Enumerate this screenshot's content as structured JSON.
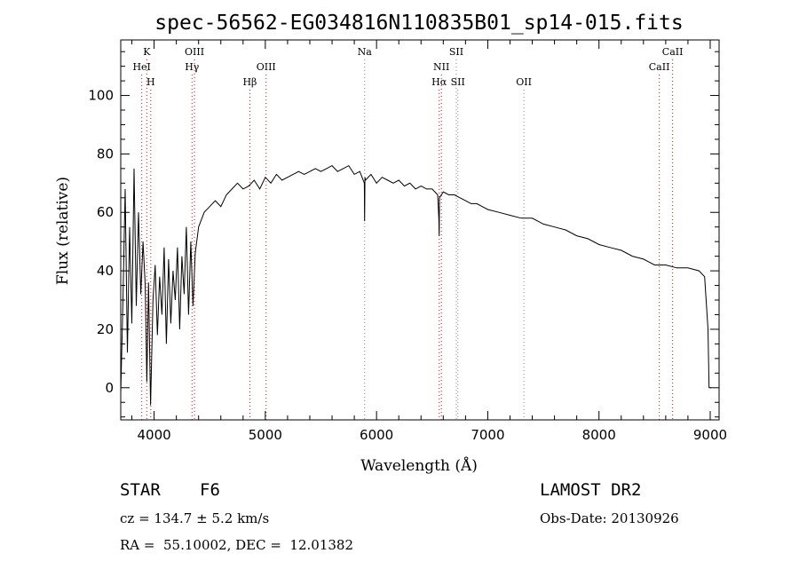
{
  "chart_data": {
    "type": "line",
    "title": "spec-56562-EG034816N110835B01_sp14-015.fits",
    "xlabel": "Wavelength (Å)",
    "ylabel": "Flux (relative)",
    "xlim": [
      3700,
      9080
    ],
    "ylim": [
      -11,
      119
    ],
    "xticks": [
      4000,
      5000,
      6000,
      7000,
      8000,
      9000
    ],
    "yticks": [
      0,
      20,
      40,
      60,
      80,
      100
    ],
    "grid": false,
    "line_color": "#000000",
    "marker_color": "#ff0000",
    "series": [
      {
        "x": [
          3700,
          3720,
          3740,
          3760,
          3780,
          3800,
          3820,
          3840,
          3860,
          3880,
          3900,
          3920,
          3935,
          3950,
          3968,
          3990,
          4010,
          4030,
          4050,
          4070,
          4090,
          4110,
          4130,
          4150,
          4170,
          4190,
          4210,
          4230,
          4250,
          4270,
          4290,
          4310,
          4330,
          4350,
          4370,
          4400,
          4450,
          4500,
          4550,
          4600,
          4650,
          4700,
          4750,
          4800,
          4850,
          4900,
          4950,
          5000,
          5050,
          5100,
          5150,
          5200,
          5250,
          5300,
          5350,
          5400,
          5450,
          5500,
          5550,
          5600,
          5650,
          5700,
          5750,
          5800,
          5850,
          5890,
          5893,
          5896,
          5900,
          5950,
          6000,
          6050,
          6100,
          6150,
          6200,
          6250,
          6300,
          6350,
          6400,
          6450,
          6500,
          6550,
          6560,
          6563,
          6566,
          6600,
          6650,
          6700,
          6750,
          6800,
          6850,
          6900,
          6950,
          7000,
          7100,
          7200,
          7300,
          7400,
          7500,
          7600,
          7700,
          7800,
          7900,
          8000,
          8100,
          8200,
          8300,
          8400,
          8450,
          8500,
          8600,
          8700,
          8800,
          8900,
          8950,
          8980,
          8990,
          9000,
          9010
        ],
        "y": [
          -2,
          30,
          68,
          12,
          55,
          22,
          75,
          28,
          60,
          32,
          50,
          35,
          2,
          36,
          -6,
          30,
          42,
          18,
          38,
          25,
          48,
          15,
          44,
          22,
          40,
          30,
          48,
          20,
          45,
          32,
          55,
          25,
          50,
          28,
          46,
          55,
          60,
          62,
          64,
          62,
          66,
          68,
          70,
          68,
          69,
          71,
          68,
          72,
          70,
          73,
          71,
          72,
          73,
          74,
          73,
          74,
          75,
          74,
          75,
          76,
          74,
          75,
          76,
          73,
          74,
          70,
          57,
          72,
          71,
          73,
          70,
          72,
          71,
          70,
          71,
          69,
          70,
          68,
          69,
          68,
          68,
          66,
          58,
          52,
          65,
          67,
          66,
          66,
          65,
          64,
          63,
          63,
          62,
          61,
          60,
          59,
          58,
          58,
          56,
          55,
          54,
          52,
          51,
          49,
          48,
          47,
          45,
          44,
          43,
          42,
          42,
          41,
          41,
          40,
          38,
          20,
          0,
          0,
          0
        ]
      }
    ],
    "lines": [
      {
        "label": "K",
        "x": 3934,
        "row": 0
      },
      {
        "label": "HeI",
        "x": 3889,
        "row": 1
      },
      {
        "label": "H",
        "x": 3970,
        "row": 2
      },
      {
        "label": "OIII",
        "x": 4363,
        "row": 0
      },
      {
        "label": "Hγ",
        "x": 4341,
        "row": 1
      },
      {
        "label": "OIII",
        "x": 5007,
        "row": 1
      },
      {
        "label": "Hβ",
        "x": 4861,
        "row": 2
      },
      {
        "label": "Na",
        "x": 5893,
        "row": 0
      },
      {
        "label": "SII",
        "x": 6717,
        "row": 0
      },
      {
        "label": "NII",
        "x": 6583,
        "row": 1
      },
      {
        "label": "Hα",
        "x": 6563,
        "row": 2
      },
      {
        "label": "SII",
        "x": 6731,
        "row": 2
      },
      {
        "label": "OII",
        "x": 7325,
        "row": 2
      },
      {
        "label": "CaII",
        "x": 8662,
        "row": 0
      },
      {
        "label": "CaII",
        "x": 8542,
        "row": 1
      }
    ]
  },
  "info": {
    "object_class": "STAR",
    "subclass": "F6",
    "survey": "LAMOST DR2",
    "redshift": "cz = 134.7 ± 5.2 km/s",
    "obs_date": "Obs-Date: 20130926",
    "coords": "RA =  55.10002, DEC =  12.01382"
  }
}
